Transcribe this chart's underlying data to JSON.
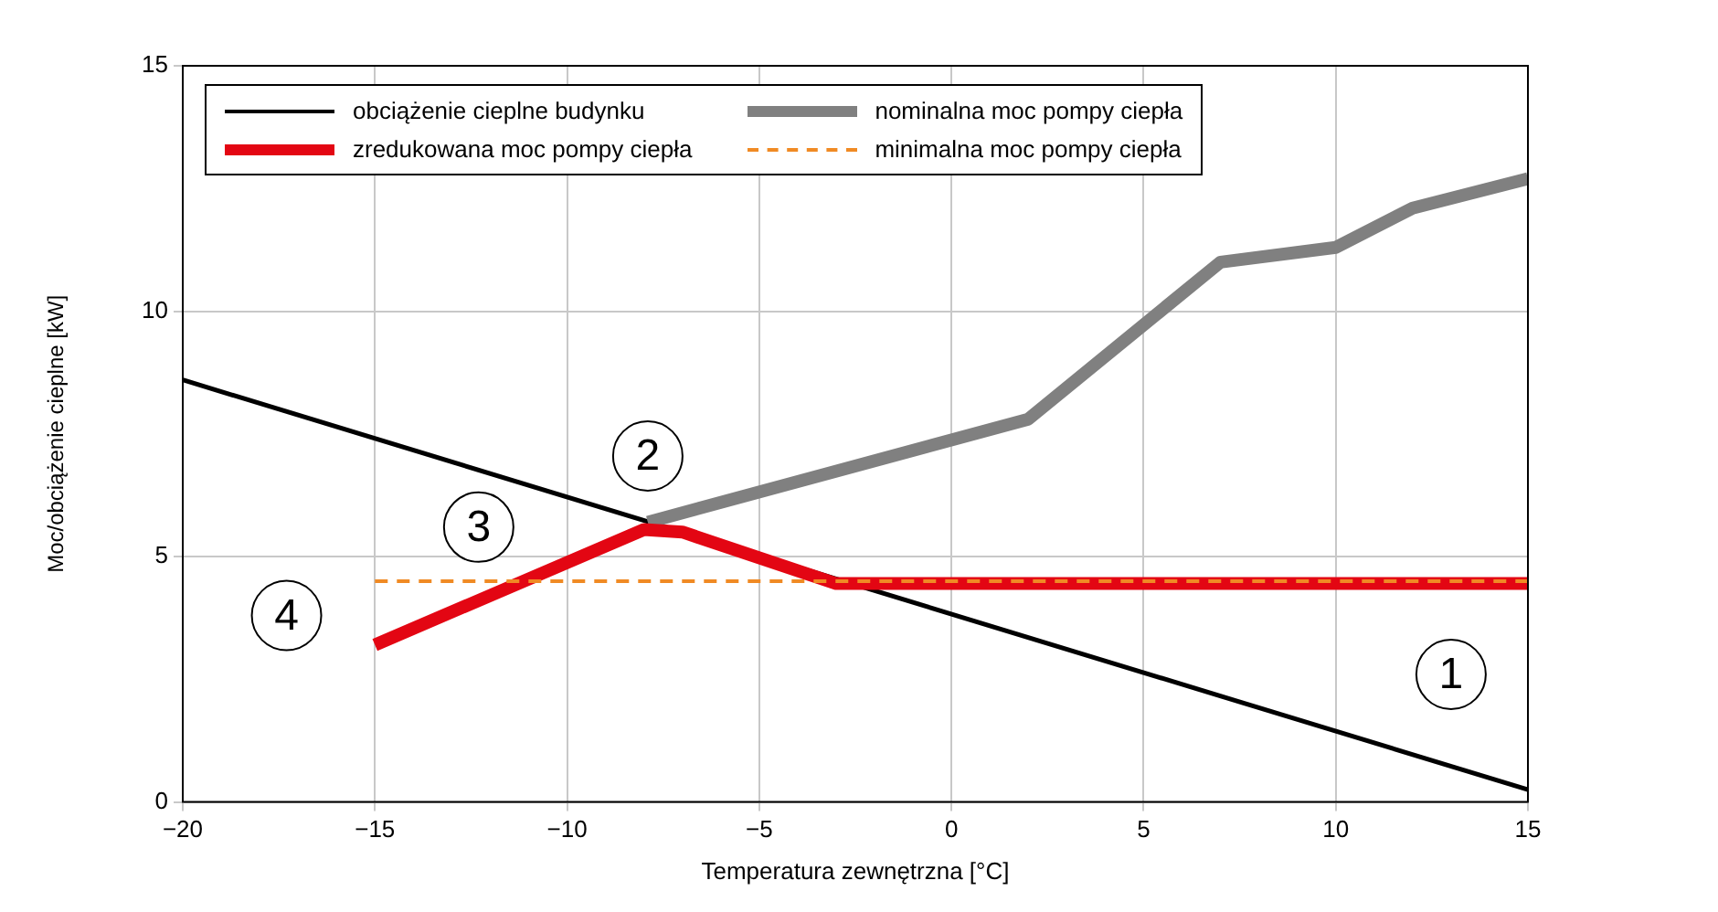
{
  "chart_data": {
    "type": "line",
    "xlabel": "Temperatura zewnętrzna [°C]",
    "ylabel": "Moc/obciążenie cieplne [kW]",
    "xlim": [
      -20,
      15
    ],
    "xticks": [
      {
        "value": -20,
        "label": "−20"
      },
      {
        "value": -15,
        "label": "−15"
      },
      {
        "value": -10,
        "label": "−10"
      },
      {
        "value": -5,
        "label": "−5"
      },
      0,
      5,
      10,
      15
    ],
    "ylim": [
      0,
      15
    ],
    "yticks": [
      0,
      5,
      10,
      15
    ],
    "grid": true,
    "legend": "top left",
    "marker": "none",
    "series": [
      {
        "name": "obciążenie cieplne budynku",
        "color": "#000000",
        "x": [
          -20,
          15
        ],
        "values": [
          8.6,
          0.25
        ]
      },
      {
        "name": "nominalna moc pompy ciepła",
        "color": "#808080",
        "x": [
          -7.9,
          2,
          7,
          10,
          12,
          15
        ],
        "values": [
          5.7,
          7.8,
          11,
          11.3,
          12.1,
          12.7
        ]
      },
      {
        "name": "zredukowana moc pompy ciepła",
        "color": "#e30613",
        "x": [
          -15,
          -8,
          -7,
          -3,
          15
        ],
        "values": [
          3.2,
          5.55,
          5.5,
          4.45,
          4.45
        ]
      },
      {
        "name": "minimalna moc pompy ciepła",
        "color": "#f08a24",
        "line_style": "dashed",
        "x": [
          -15,
          15
        ],
        "values": [
          4.5,
          4.5
        ]
      }
    ],
    "annotations": [
      {
        "text": "1",
        "x": 13,
        "y": 2.6
      },
      {
        "text": "2",
        "x": -7.9,
        "y": 7.05
      },
      {
        "text": "3",
        "x": -12.3,
        "y": 5.6
      },
      {
        "text": "4",
        "x": -17.3,
        "y": 3.8
      }
    ]
  }
}
